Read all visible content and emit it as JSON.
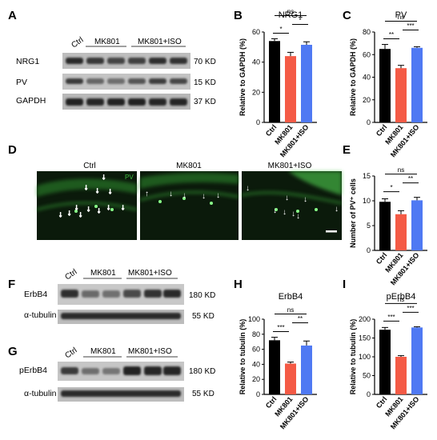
{
  "panel_letters": [
    "A",
    "B",
    "C",
    "D",
    "E",
    "F",
    "G",
    "H",
    "I"
  ],
  "colors": {
    "ctrl": "#000000",
    "mk801": "#f45a45",
    "iso": "#4f79f3",
    "micro_bg": "#0b1a0b",
    "micro_signal": "#3fbf3f"
  },
  "blot_A": {
    "lanes": [
      "Ctrl",
      "MK801",
      "MK801+ISO"
    ],
    "rows": [
      {
        "name": "NRG1",
        "size": "70 KD"
      },
      {
        "name": "PV",
        "size": "15 KD"
      },
      {
        "name": "GAPDH",
        "size": "37 KD"
      }
    ]
  },
  "blot_F": {
    "lanes": [
      "Ctrl",
      "MK801",
      "MK801+ISO"
    ],
    "rows": [
      {
        "name": "ErbB4",
        "size": "180 KD"
      },
      {
        "name": "α-tubulin",
        "size": "55 KD"
      }
    ]
  },
  "blot_G": {
    "lanes": [
      "Ctrl",
      "MK801",
      "MK801+ISO"
    ],
    "rows": [
      {
        "name": "pErbB4",
        "size": "180 KD"
      },
      {
        "name": "α-tubulin",
        "size": "55 KD"
      }
    ]
  },
  "micrographs": {
    "labels": [
      "Ctrl",
      "MK801",
      "MK801+ISO"
    ],
    "channel_label": "PV"
  },
  "chart_data": [
    {
      "id": "B",
      "type": "bar",
      "title": "NRG1",
      "ylabel": "Relative to GAPDH (%)",
      "categories": [
        "Ctrl",
        "MK801",
        "MK801+ISO"
      ],
      "values": [
        54,
        44,
        51.5
      ],
      "errors": [
        1.5,
        2.5,
        2
      ],
      "ylim": [
        0,
        60
      ],
      "yticks": [
        0,
        20,
        40,
        60
      ],
      "significance": [
        {
          "from": 0,
          "to": 2,
          "label": "ns"
        },
        {
          "from": 0,
          "to": 1,
          "label": "*"
        },
        {
          "from": 1,
          "to": 2,
          "label": "*"
        }
      ]
    },
    {
      "id": "C",
      "type": "bar",
      "title": "PV",
      "ylabel": "Relative to GAPDH (%)",
      "categories": [
        "Ctrl",
        "MK801",
        "MK801+ISO"
      ],
      "values": [
        65,
        48,
        66
      ],
      "errors": [
        4,
        2.5,
        1
      ],
      "ylim": [
        0,
        80
      ],
      "yticks": [
        0,
        20,
        40,
        60,
        80
      ],
      "significance": [
        {
          "from": 0,
          "to": 2,
          "label": "ns"
        },
        {
          "from": 0,
          "to": 1,
          "label": "**"
        },
        {
          "from": 1,
          "to": 2,
          "label": "***"
        }
      ]
    },
    {
      "id": "E",
      "type": "bar",
      "title": "",
      "ylabel": "Number of PV⁺ cells",
      "categories": [
        "Ctrl",
        "MK801",
        "MK801+ISO"
      ],
      "values": [
        9.8,
        7.3,
        10.1
      ],
      "errors": [
        0.6,
        0.7,
        0.6
      ],
      "ylim": [
        0,
        15
      ],
      "yticks": [
        0,
        5,
        10,
        15
      ],
      "significance": [
        {
          "from": 0,
          "to": 2,
          "label": "ns"
        },
        {
          "from": 0,
          "to": 1,
          "label": "*"
        },
        {
          "from": 1,
          "to": 2,
          "label": "**"
        }
      ]
    },
    {
      "id": "H",
      "type": "bar",
      "title": "ErbB4",
      "ylabel": "Relative to tubulin (%)",
      "categories": [
        "Ctrl",
        "MK801",
        "MK801+ISO"
      ],
      "values": [
        72,
        41,
        65
      ],
      "errors": [
        4,
        2,
        6
      ],
      "ylim": [
        0,
        100
      ],
      "yticks": [
        0,
        20,
        40,
        60,
        80,
        100
      ],
      "significance": [
        {
          "from": 0,
          "to": 2,
          "label": "ns"
        },
        {
          "from": 0,
          "to": 1,
          "label": "***"
        },
        {
          "from": 1,
          "to": 2,
          "label": "**"
        }
      ]
    },
    {
      "id": "I",
      "type": "bar",
      "title": "pErbB4",
      "ylabel": "Relative to tubulin (%)",
      "categories": [
        "Ctrl",
        "MK801",
        "MK801+ISO"
      ],
      "values": [
        172,
        100,
        178
      ],
      "errors": [
        6,
        3,
        2
      ],
      "ylim": [
        0,
        200
      ],
      "yticks": [
        0,
        50,
        100,
        150,
        200
      ],
      "significance": [
        {
          "from": 0,
          "to": 2,
          "label": "ns"
        },
        {
          "from": 0,
          "to": 1,
          "label": "***"
        },
        {
          "from": 1,
          "to": 2,
          "label": "***"
        }
      ]
    }
  ]
}
